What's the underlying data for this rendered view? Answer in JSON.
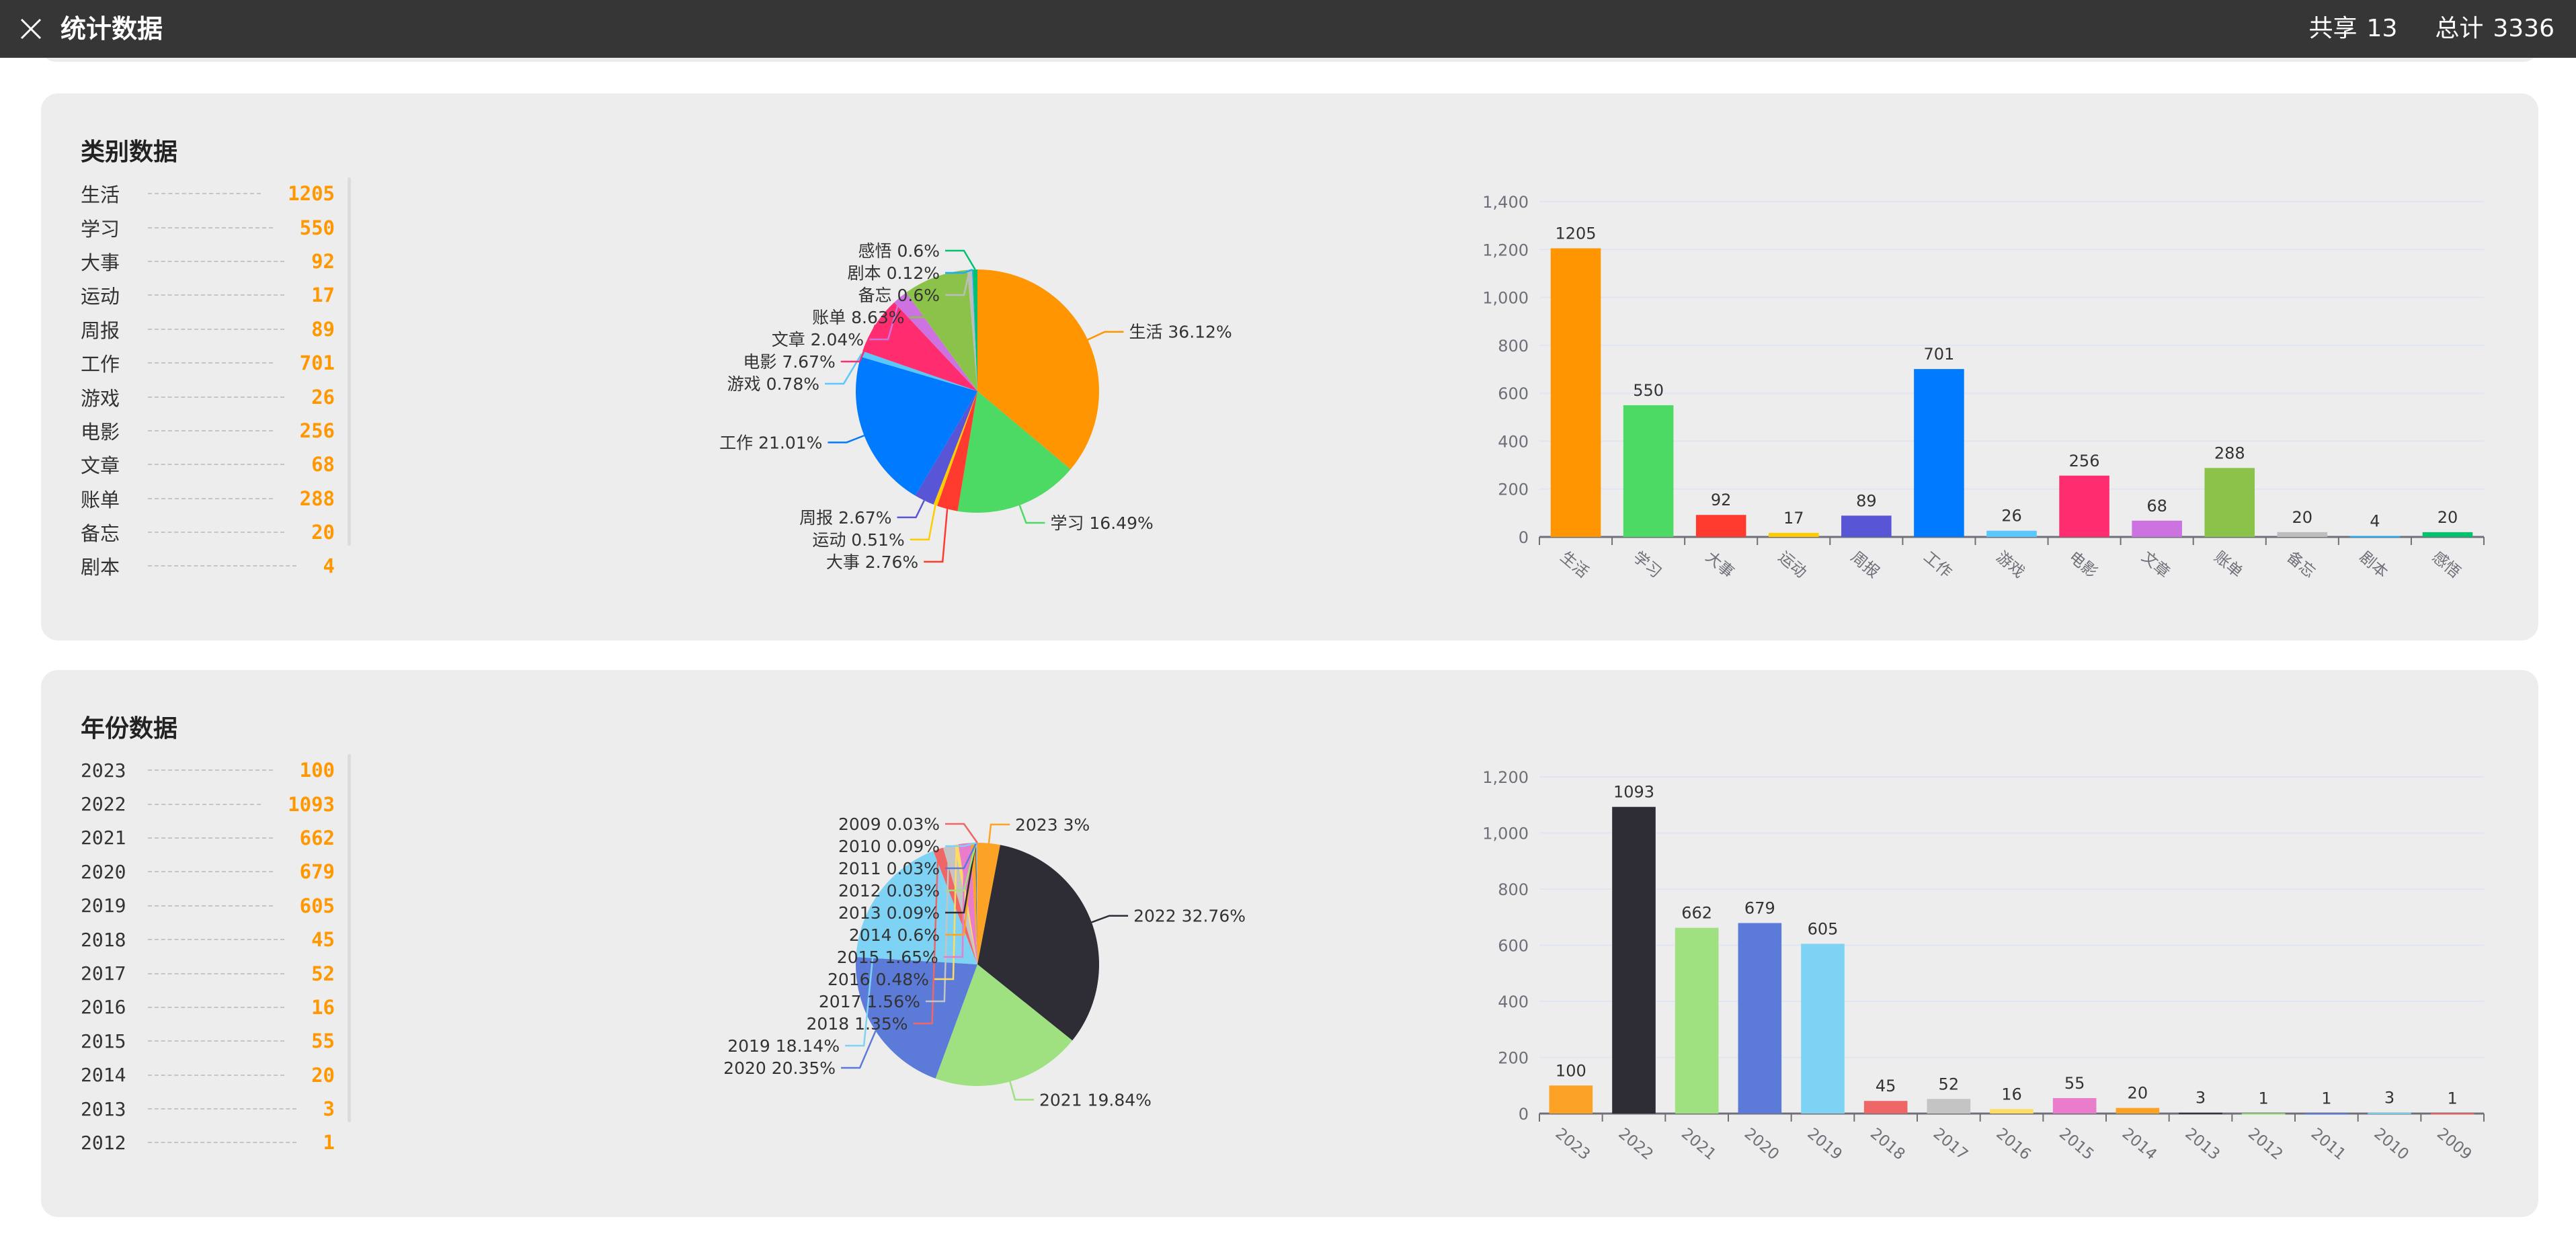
{
  "header": {
    "title": "统计数据",
    "shared_label": "共享",
    "shared_count": "13",
    "total_label": "总计",
    "total_count": "3336"
  },
  "sections": [
    {
      "title": "类别数据",
      "list": [
        {
          "label": "生活",
          "value": "1205"
        },
        {
          "label": "学习",
          "value": "550"
        },
        {
          "label": "大事",
          "value": "92"
        },
        {
          "label": "运动",
          "value": "17"
        },
        {
          "label": "周报",
          "value": "89"
        },
        {
          "label": "工作",
          "value": "701"
        },
        {
          "label": "游戏",
          "value": "26"
        },
        {
          "label": "电影",
          "value": "256"
        },
        {
          "label": "文章",
          "value": "68"
        },
        {
          "label": "账单",
          "value": "288"
        },
        {
          "label": "备忘",
          "value": "20"
        },
        {
          "label": "剧本",
          "value": "4"
        }
      ]
    },
    {
      "title": "年份数据",
      "list": [
        {
          "label": "2023",
          "value": "100"
        },
        {
          "label": "2022",
          "value": "1093"
        },
        {
          "label": "2021",
          "value": "662"
        },
        {
          "label": "2020",
          "value": "679"
        },
        {
          "label": "2019",
          "value": "605"
        },
        {
          "label": "2018",
          "value": "45"
        },
        {
          "label": "2017",
          "value": "52"
        },
        {
          "label": "2016",
          "value": "16"
        },
        {
          "label": "2015",
          "value": "55"
        },
        {
          "label": "2014",
          "value": "20"
        },
        {
          "label": "2013",
          "value": "3"
        },
        {
          "label": "2012",
          "value": "1"
        }
      ]
    }
  ],
  "chart_data": [
    {
      "type": "pie",
      "title": "类别数据",
      "categories": [
        "生活",
        "学习",
        "大事",
        "运动",
        "周报",
        "工作",
        "游戏",
        "电影",
        "文章",
        "账单",
        "备忘",
        "剧本",
        "感悟"
      ],
      "values": [
        1205,
        550,
        92,
        17,
        89,
        701,
        26,
        256,
        68,
        288,
        20,
        4,
        20
      ],
      "labels": [
        "生活 36.12%",
        "学习 16.49%",
        "大事 2.76%",
        "运动 0.51%",
        "周报 2.67%",
        "工作 21.01%",
        "游戏 0.78%",
        "电影 7.67%",
        "文章 2.04%",
        "账单 8.63%",
        "备忘 0.6%",
        "剧本 0.12%",
        "感悟 0.6%"
      ],
      "colors": [
        "#ff9500",
        "#4cd964",
        "#ff3b30",
        "#ffcc00",
        "#5856d6",
        "#007aff",
        "#5ac8fa",
        "#ff2d6f",
        "#cc73e1",
        "#8bc34a",
        "#bdbdbd",
        "#1badf8",
        "#00c26e"
      ]
    },
    {
      "type": "bar",
      "title": "类别数据",
      "categories": [
        "生活",
        "学习",
        "大事",
        "运动",
        "周报",
        "工作",
        "游戏",
        "电影",
        "文章",
        "账单",
        "备忘",
        "剧本",
        "感悟"
      ],
      "values": [
        1205,
        550,
        92,
        17,
        89,
        701,
        26,
        256,
        68,
        288,
        20,
        4,
        20
      ],
      "value_labels": [
        "1205",
        "550",
        "92",
        "17",
        "89",
        "701",
        "26",
        "256",
        "68",
        "288",
        "20",
        "4",
        "20"
      ],
      "ylim": [
        0,
        1400
      ],
      "yticks": [
        0,
        200,
        400,
        600,
        800,
        1000,
        1200,
        1400
      ],
      "ytick_labels": [
        "0",
        "200",
        "400",
        "600",
        "800",
        "1,000",
        "1,200",
        "1,400"
      ],
      "grid": true,
      "colors": [
        "#ff9500",
        "#4cd964",
        "#ff3b30",
        "#ffcc00",
        "#5856d6",
        "#007aff",
        "#5ac8fa",
        "#ff2d6f",
        "#cc73e1",
        "#8bc34a",
        "#bdbdbd",
        "#1badf8",
        "#00c26e"
      ]
    },
    {
      "type": "pie",
      "title": "年份数据",
      "categories": [
        "2023",
        "2022",
        "2021",
        "2020",
        "2019",
        "2018",
        "2017",
        "2016",
        "2015",
        "2014",
        "2013",
        "2012",
        "2011",
        "2010",
        "2009"
      ],
      "values": [
        100,
        1093,
        662,
        679,
        605,
        45,
        52,
        16,
        55,
        20,
        3,
        1,
        1,
        3,
        1
      ],
      "labels": [
        "2023 3%",
        "2022 32.76%",
        "2021 19.84%",
        "2020 20.35%",
        "2019 18.14%",
        "2018 1.35%",
        "2017 1.56%",
        "2016 0.48%",
        "2015 1.65%",
        "2014 0.6%",
        "2013 0.09%",
        "2012 0.03%",
        "2011 0.03%",
        "2010 0.09%",
        "2009 0.03%"
      ],
      "colors": [
        "#fca325",
        "#2e2d36",
        "#9fe080",
        "#5c7bd9",
        "#7ed3f4",
        "#ee6666",
        "#c4c4c4",
        "#ffdc60",
        "#ea7ccc",
        "#fca325",
        "#2e2d36",
        "#9fe080",
        "#5c7bd9",
        "#7ed3f4",
        "#ee6666"
      ]
    },
    {
      "type": "bar",
      "title": "年份数据",
      "categories": [
        "2023",
        "2022",
        "2021",
        "2020",
        "2019",
        "2018",
        "2017",
        "2016",
        "2015",
        "2014",
        "2013",
        "2012",
        "2011",
        "2010",
        "2009"
      ],
      "values": [
        100,
        1093,
        662,
        679,
        605,
        45,
        52,
        16,
        55,
        20,
        3,
        1,
        1,
        3,
        1
      ],
      "value_labels": [
        "100",
        "1093",
        "662",
        "679",
        "605",
        "45",
        "52",
        "16",
        "55",
        "20",
        "3",
        "1",
        "1",
        "3",
        "1"
      ],
      "ylim": [
        0,
        1200
      ],
      "yticks": [
        0,
        200,
        400,
        600,
        800,
        1000,
        1200
      ],
      "ytick_labels": [
        "0",
        "200",
        "400",
        "600",
        "800",
        "1,000",
        "1,200"
      ],
      "grid": true,
      "colors": [
        "#fca325",
        "#2e2d36",
        "#9fe080",
        "#5c7bd9",
        "#7ed3f4",
        "#ee6666",
        "#c4c4c4",
        "#ffdc60",
        "#ea7ccc",
        "#fca325",
        "#2e2d36",
        "#9fe080",
        "#5c7bd9",
        "#7ed3f4",
        "#ee6666"
      ]
    }
  ]
}
